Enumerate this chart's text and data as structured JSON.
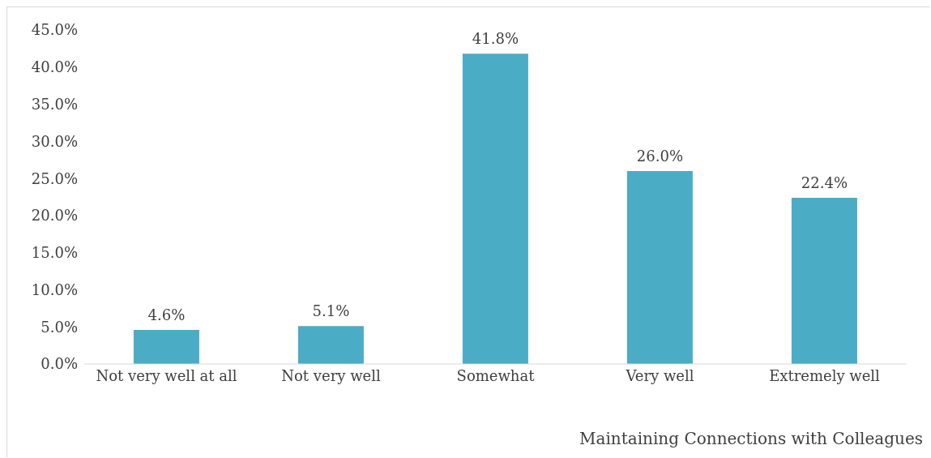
{
  "chart_data": {
    "type": "bar",
    "xlabel": "Maintaining Connections with Colleagues",
    "categories": [
      "Not very well at all",
      "Not very well",
      "Somewhat",
      "Very well",
      "Extremely well"
    ],
    "values": [
      4.6,
      5.1,
      41.8,
      26.0,
      22.4
    ],
    "value_labels": [
      "4.6%",
      "5.1%",
      "41.8%",
      "26.0%",
      "22.4%"
    ],
    "color": "#4bacc6",
    "ylim": [
      0,
      45
    ],
    "yticks": [
      {
        "value": 0,
        "label": "0.0%"
      },
      {
        "value": 5,
        "label": "5.0%"
      },
      {
        "value": 10,
        "label": "10.0%"
      },
      {
        "value": 15,
        "label": "15.0%"
      },
      {
        "value": 20,
        "label": "20.0%"
      },
      {
        "value": 25,
        "label": "25.0%"
      },
      {
        "value": 30,
        "label": "30.0%"
      },
      {
        "value": 35,
        "label": "35.0%"
      },
      {
        "value": 40,
        "label": "40.0%"
      },
      {
        "value": 45,
        "label": "45.0%"
      }
    ]
  }
}
